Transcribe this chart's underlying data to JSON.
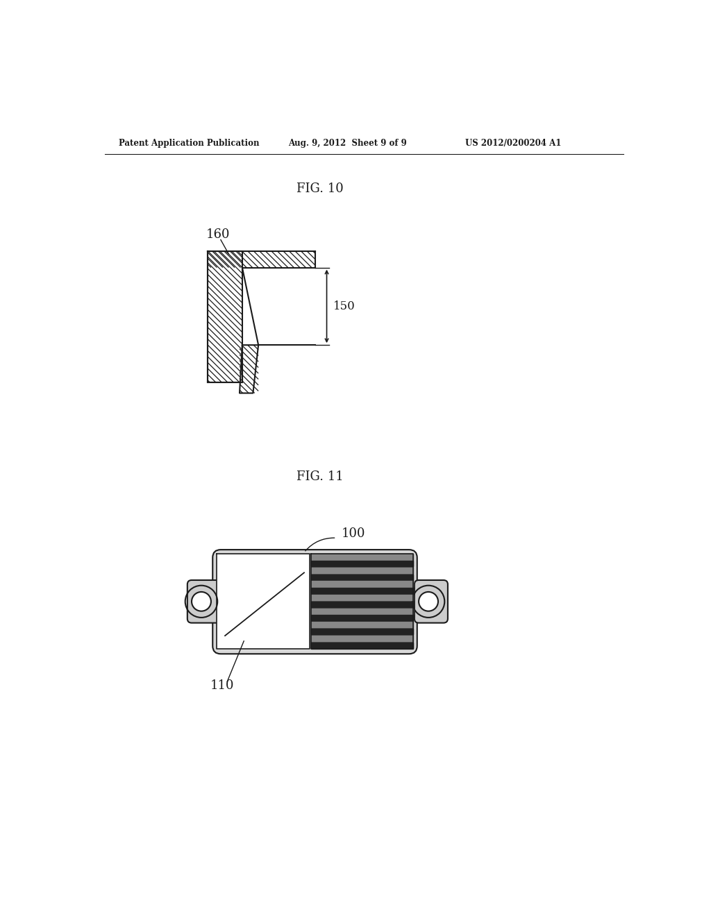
{
  "bg_color": "#ffffff",
  "header_left": "Patent Application Publication",
  "header_mid": "Aug. 9, 2012  Sheet 9 of 9",
  "header_right": "US 2012/0200204 A1",
  "fig10_label": "FIG. 10",
  "fig11_label": "FIG. 11",
  "label_160": "160",
  "label_150": "150",
  "label_100": "100",
  "label_110": "110",
  "text_color": "#1a1a1a",
  "line_color": "#1a1a1a"
}
